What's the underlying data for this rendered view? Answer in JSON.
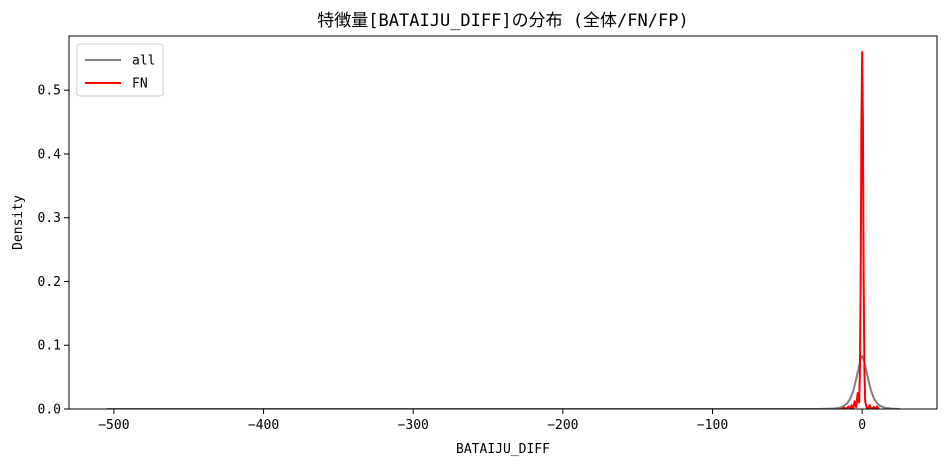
{
  "chart_data": {
    "type": "line",
    "title": "特徴量[BATAIJU_DIFF]の分布 (全体/FN/FP)",
    "xlabel": "BATAIJU_DIFF",
    "ylabel": "Density",
    "xlim": [
      -530,
      50
    ],
    "ylim": [
      0,
      0.585
    ],
    "x_ticks": [
      -500,
      -400,
      -300,
      -200,
      -100,
      0
    ],
    "x_tick_labels": [
      "−500",
      "−400",
      "−300",
      "−200",
      "−100",
      "0"
    ],
    "y_ticks": [
      0.0,
      0.1,
      0.2,
      0.3,
      0.4,
      0.5
    ],
    "y_tick_labels": [
      "0.0",
      "0.1",
      "0.2",
      "0.3",
      "0.4",
      "0.5"
    ],
    "grid": false,
    "legend_position": "top-left",
    "series": [
      {
        "name": "all",
        "color": "#808080",
        "points": [
          [
            -505,
            0.0
          ],
          [
            -100,
            0.0
          ],
          [
            -30,
            0.0
          ],
          [
            -20,
            0.0005
          ],
          [
            -15,
            0.002
          ],
          [
            -12,
            0.005
          ],
          [
            -10,
            0.009
          ],
          [
            -8,
            0.016
          ],
          [
            -6,
            0.028
          ],
          [
            -4,
            0.047
          ],
          [
            -2,
            0.068
          ],
          [
            -1,
            0.078
          ],
          [
            0,
            0.083
          ],
          [
            1,
            0.078
          ],
          [
            2,
            0.068
          ],
          [
            4,
            0.047
          ],
          [
            6,
            0.028
          ],
          [
            8,
            0.016
          ],
          [
            10,
            0.009
          ],
          [
            12,
            0.005
          ],
          [
            15,
            0.002
          ],
          [
            20,
            0.0005
          ],
          [
            25,
            0.0
          ]
        ]
      },
      {
        "name": "FN",
        "color": "#ff0000",
        "points": [
          [
            -14,
            0.0
          ],
          [
            -12,
            0.002
          ],
          [
            -11,
            0.0
          ],
          [
            -9,
            0.004
          ],
          [
            -8,
            0.0
          ],
          [
            -7,
            0.006
          ],
          [
            -6,
            0.0
          ],
          [
            -5,
            0.012
          ],
          [
            -4,
            0.003
          ],
          [
            -3,
            0.025
          ],
          [
            -2,
            0.01
          ],
          [
            -1.5,
            0.06
          ],
          [
            -1,
            0.2
          ],
          [
            -0.5,
            0.45
          ],
          [
            0,
            0.56
          ],
          [
            0.5,
            0.45
          ],
          [
            1,
            0.2
          ],
          [
            1.5,
            0.06
          ],
          [
            2,
            0.012
          ],
          [
            3,
            0.002
          ],
          [
            4,
            0.0
          ],
          [
            5,
            0.006
          ],
          [
            6,
            0.0
          ],
          [
            8,
            0.003
          ],
          [
            9,
            0.0
          ],
          [
            10,
            0.004
          ],
          [
            11,
            0.0
          ]
        ]
      }
    ]
  }
}
